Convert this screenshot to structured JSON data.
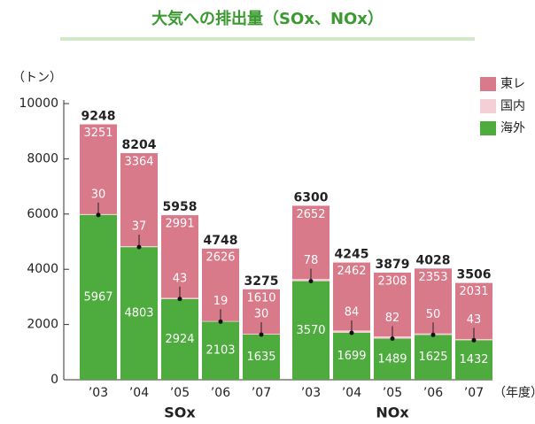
{
  "chart_data": {
    "type": "stacked_bar",
    "title": "大気への排出量（SOx、NOx）",
    "y_unit": "（トン）",
    "x_unit": "（年度）",
    "groups": [
      "SOx",
      "NOx"
    ],
    "categories": [
      "’03",
      "’04",
      "’05",
      "’06",
      "’07",
      "’03",
      "’04",
      "’05",
      "’06",
      "’07"
    ],
    "series": [
      {
        "name": "海外",
        "color": "#4eab3e",
        "values": [
          5967,
          4803,
          2924,
          2103,
          1635,
          3570,
          1699,
          1489,
          1625,
          1432
        ]
      },
      {
        "name": "国内",
        "color": "#f4cfd5",
        "values": [
          30,
          37,
          43,
          19,
          30,
          78,
          84,
          82,
          50,
          43
        ]
      },
      {
        "name": "東レ",
        "color": "#d97a8b",
        "values": [
          3251,
          3364,
          2991,
          2626,
          1610,
          2652,
          2462,
          2308,
          2353,
          2031
        ]
      }
    ],
    "totals": [
      9248,
      8204,
      5958,
      4748,
      3275,
      6300,
      4245,
      3879,
      4028,
      3506
    ],
    "ylim": [
      0,
      10000
    ],
    "yticks": [
      0,
      2000,
      4000,
      6000,
      8000,
      10000
    ]
  }
}
